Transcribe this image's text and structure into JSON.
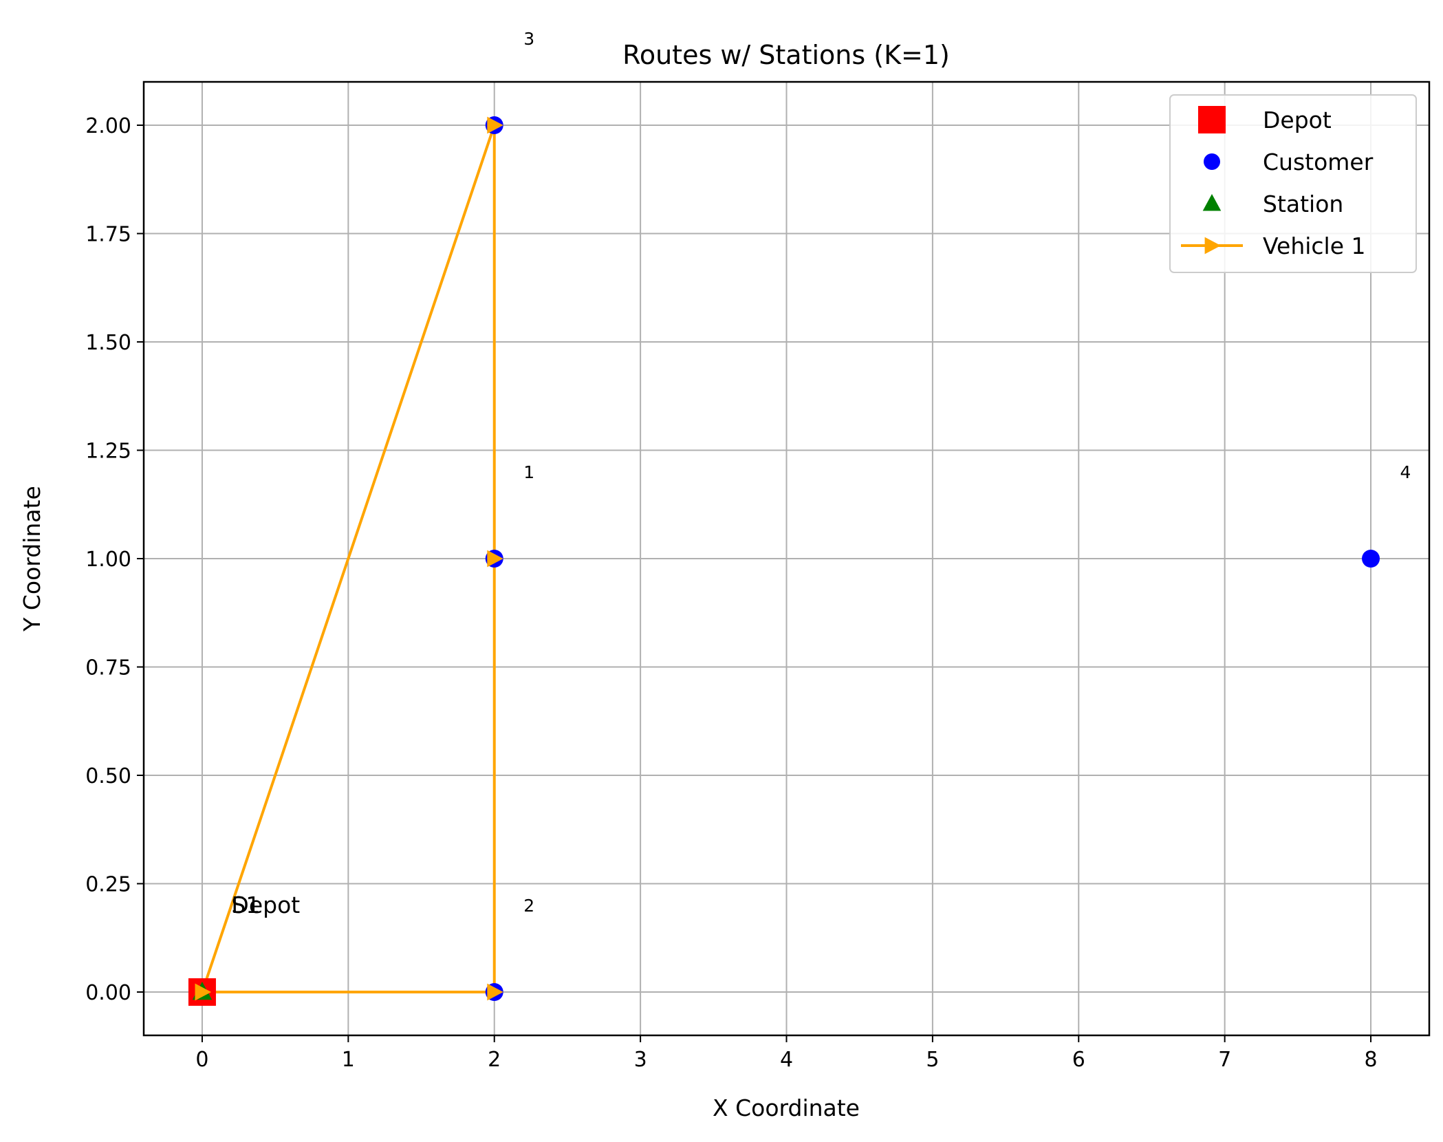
{
  "chart_data": {
    "type": "scatter",
    "title": "Routes w/ Stations (K=1)",
    "xlabel": "X Coordinate",
    "ylabel": "Y Coordinate",
    "xlim": [
      -0.4,
      8.4
    ],
    "ylim": [
      -0.1,
      2.1
    ],
    "x_ticks": [
      0,
      1,
      2,
      3,
      4,
      5,
      6,
      7,
      8
    ],
    "x_tick_labels": [
      "0",
      "1",
      "2",
      "3",
      "4",
      "5",
      "6",
      "7",
      "8"
    ],
    "y_ticks": [
      0.0,
      0.25,
      0.5,
      0.75,
      1.0,
      1.25,
      1.5,
      1.75,
      2.0
    ],
    "y_tick_labels": [
      "0.00",
      "0.25",
      "0.50",
      "0.75",
      "1.00",
      "1.25",
      "1.50",
      "1.75",
      "2.00"
    ],
    "grid": true,
    "legend_position": "top-right",
    "series": [
      {
        "name": "Depot",
        "kind": "marker",
        "marker": "square",
        "color": "#ff0000",
        "points": [
          [
            0,
            0
          ]
        ]
      },
      {
        "name": "Customer",
        "kind": "marker",
        "marker": "circle",
        "color": "#0000ff",
        "points": [
          [
            2,
            1
          ],
          [
            2,
            0
          ],
          [
            2,
            2
          ],
          [
            8,
            1
          ]
        ]
      },
      {
        "name": "Station",
        "kind": "marker",
        "marker": "triangle",
        "color": "#008000",
        "points": [
          [
            0,
            0
          ]
        ]
      },
      {
        "name": "Vehicle 1",
        "kind": "route",
        "marker": "triangle-right",
        "color": "#ffa500",
        "points": [
          [
            0,
            0
          ],
          [
            2,
            0
          ],
          [
            2,
            1
          ],
          [
            2,
            2
          ],
          [
            0,
            0
          ]
        ]
      }
    ],
    "annotations": [
      {
        "text": "1",
        "x": 2.2,
        "y": 1.2,
        "size": "small"
      },
      {
        "text": "2",
        "x": 2.2,
        "y": 0.2,
        "size": "small"
      },
      {
        "text": "3",
        "x": 2.2,
        "y": 2.2,
        "size": "small"
      },
      {
        "text": "4",
        "x": 8.2,
        "y": 1.2,
        "size": "small"
      },
      {
        "text": "S1",
        "x": 0.2,
        "y": 0.2,
        "size": "large"
      },
      {
        "text": "Depot",
        "x": 0.2,
        "y": 0.2,
        "size": "large"
      }
    ]
  }
}
